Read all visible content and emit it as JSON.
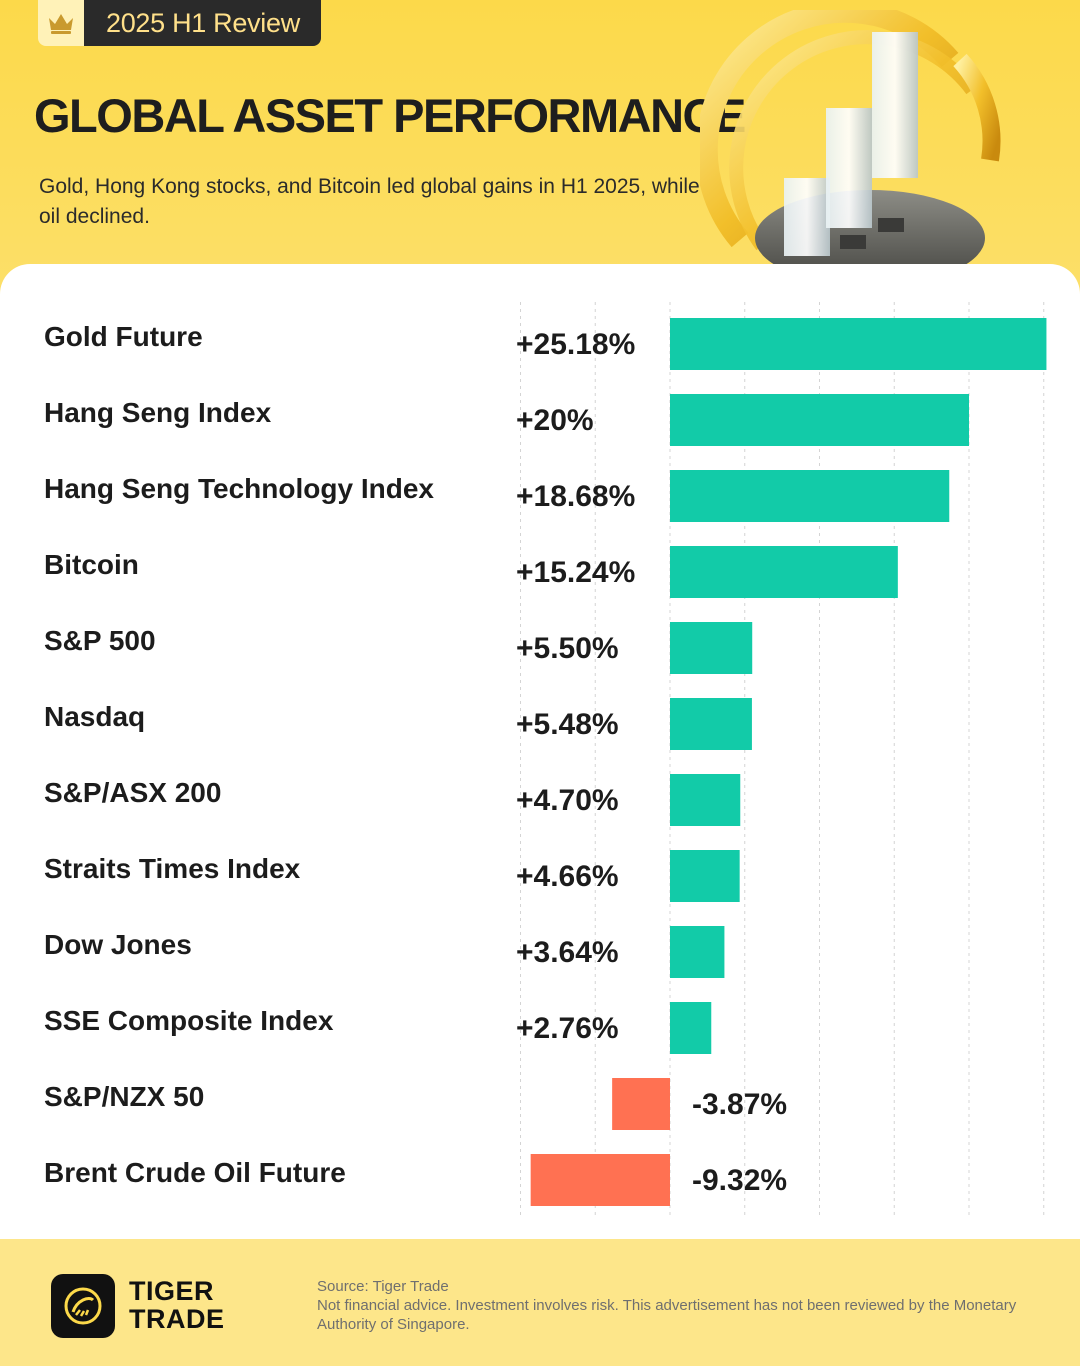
{
  "header": {
    "badge_label": "2025 H1 Review",
    "title": "GLOBAL ASSET PERFORMANCE",
    "subtitle": "Gold, Hong Kong stocks, and Bitcoin led global gains in H1 2025, while oil declined."
  },
  "colors": {
    "positive": "#12cba8",
    "negative": "#ff7152",
    "brand_yellow": "#fcd94a"
  },
  "chart_data": {
    "type": "bar",
    "orientation": "horizontal",
    "categories": [
      "Gold Future",
      "Hang Seng Index",
      "Hang Seng Technology Index",
      "Bitcoin",
      "S&P 500",
      "Nasdaq",
      "S&P/ASX 200",
      "Straits Times Index",
      "Dow Jones",
      "SSE Composite Index",
      "S&P/NZX 50",
      "Brent Crude Oil Future"
    ],
    "values": [
      25.18,
      20,
      18.68,
      15.24,
      5.5,
      5.48,
      4.7,
      4.66,
      3.64,
      2.76,
      -3.87,
      -9.32
    ],
    "value_labels": [
      "+25.18%",
      "+20%",
      "+18.68%",
      "+15.24%",
      "+5.50%",
      "+5.48%",
      "+4.70%",
      "+4.66%",
      "+3.64%",
      "+2.76%",
      "-3.87%",
      "-9.32%"
    ],
    "xlim": [
      -10,
      25
    ],
    "grid": true,
    "legend": "none"
  },
  "footer": {
    "brand_line1": "TIGER",
    "brand_line2": "TRADE",
    "source": "Source: Tiger Trade",
    "disclaimer": "Not financial advice. Investment involves risk. This advertisement has not been reviewed by the Monetary Authority of Singapore."
  }
}
